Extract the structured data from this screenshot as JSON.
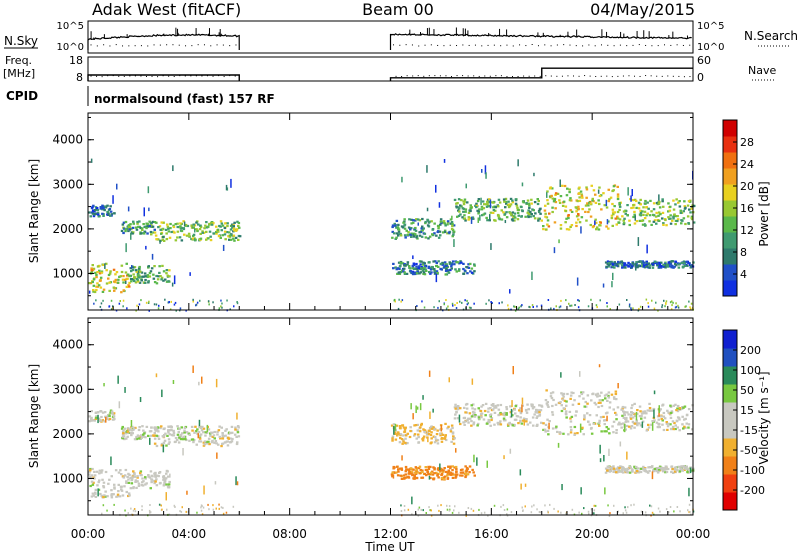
{
  "header": {
    "station": "Adak West (fitACF)",
    "beam": "Beam 00",
    "date": "04/May/2015"
  },
  "status_panels": {
    "nsky_label": "N.Sky",
    "nsearch_label": "N.Search",
    "freq_label_1": "Freq.",
    "freq_label_2": "[MHz]",
    "nave_label": "Nave",
    "cpid_label": "CPID",
    "cpid_text": "normalsound (fast) 157 RF",
    "noise_ticks_left": [
      "10^5",
      "10^0"
    ],
    "noise_ticks_right": [
      "10^5",
      "10^0"
    ],
    "freq_ticks": [
      "18",
      "8"
    ],
    "nave_ticks": [
      "60",
      "0"
    ]
  },
  "colors": {
    "power_scale": [
      "#1030e0",
      "#2050c8",
      "#2e7a6c",
      "#3f9a70",
      "#5ab84a",
      "#98c832",
      "#e8d020",
      "#f0a020",
      "#f07010",
      "#e83010",
      "#d00000"
    ],
    "velocity_scale": [
      "#e00000",
      "#f04010",
      "#f08018",
      "#f0b030",
      "#c8c8c0",
      "#c8c8c0",
      "#78c840",
      "#2a8a5a",
      "#2050c0",
      "#1020d0"
    ],
    "gray_scatter": "#c8c8c0",
    "line": "#000000"
  },
  "chart_data": {
    "type": "heatmap",
    "x": {
      "label": "Time UT",
      "range_hours": [
        0,
        24
      ],
      "ticks": [
        "00:00",
        "04:00",
        "08:00",
        "12:00",
        "16:00",
        "20:00",
        "00:00"
      ]
    },
    "y": {
      "label": "Slant Range [km]",
      "range_km": [
        180,
        4600
      ],
      "ticks": [
        "1000",
        "2000",
        "3000",
        "4000"
      ]
    },
    "data_gap_hours": [
      6.0,
      12.0
    ],
    "frequency_mhz_approx": 10.5,
    "nave_step": {
      "at_hour": 18.0,
      "before": 8,
      "after": 32
    },
    "panels": [
      {
        "name": "Power",
        "colorbar_label": "Power [dB]",
        "colorbar_ticks": [
          "4",
          "8",
          "12",
          "16",
          "20",
          "24",
          "28"
        ],
        "range": [
          0,
          32
        ]
      },
      {
        "name": "Velocity",
        "colorbar_label": "Velocity [m s⁻¹]",
        "colorbar_ticks": [
          "-200",
          "-100",
          "-50",
          "-15",
          "15",
          "50",
          "100",
          "200"
        ],
        "range": [
          -250,
          250
        ]
      }
    ],
    "echo_regions": [
      {
        "t": [
          0.0,
          1.6
        ],
        "r": [
          600,
          1250
        ],
        "power": 18,
        "velocity": 0
      },
      {
        "t": [
          1.6,
          3.2
        ],
        "r": [
          800,
          1200
        ],
        "power": 12,
        "velocity": 0
      },
      {
        "t": [
          0.0,
          1.0
        ],
        "r": [
          2300,
          2550
        ],
        "power": 6,
        "velocity": 0
      },
      {
        "t": [
          1.3,
          2.6
        ],
        "r": [
          1900,
          2200
        ],
        "power": 10,
        "velocity": 0
      },
      {
        "t": [
          2.6,
          6.0
        ],
        "r": [
          1750,
          2200
        ],
        "power": 14,
        "velocity": 0
      },
      {
        "t": [
          12.0,
          14.5
        ],
        "r": [
          1800,
          2250
        ],
        "power": 10,
        "velocity": -20
      },
      {
        "t": [
          14.5,
          18.0
        ],
        "r": [
          2200,
          2700
        ],
        "power": 12,
        "velocity": 0
      },
      {
        "t": [
          12.0,
          15.3
        ],
        "r": [
          1000,
          1300
        ],
        "power": 8,
        "velocity": -60
      },
      {
        "t": [
          18.0,
          21.0
        ],
        "r": [
          2000,
          3000
        ],
        "power": 18,
        "velocity": 0
      },
      {
        "t": [
          21.0,
          24.0
        ],
        "r": [
          2100,
          2700
        ],
        "power": 14,
        "velocity": 0
      },
      {
        "t": [
          20.5,
          24.0
        ],
        "r": [
          1150,
          1300
        ],
        "power": 6,
        "velocity": 0
      }
    ]
  }
}
